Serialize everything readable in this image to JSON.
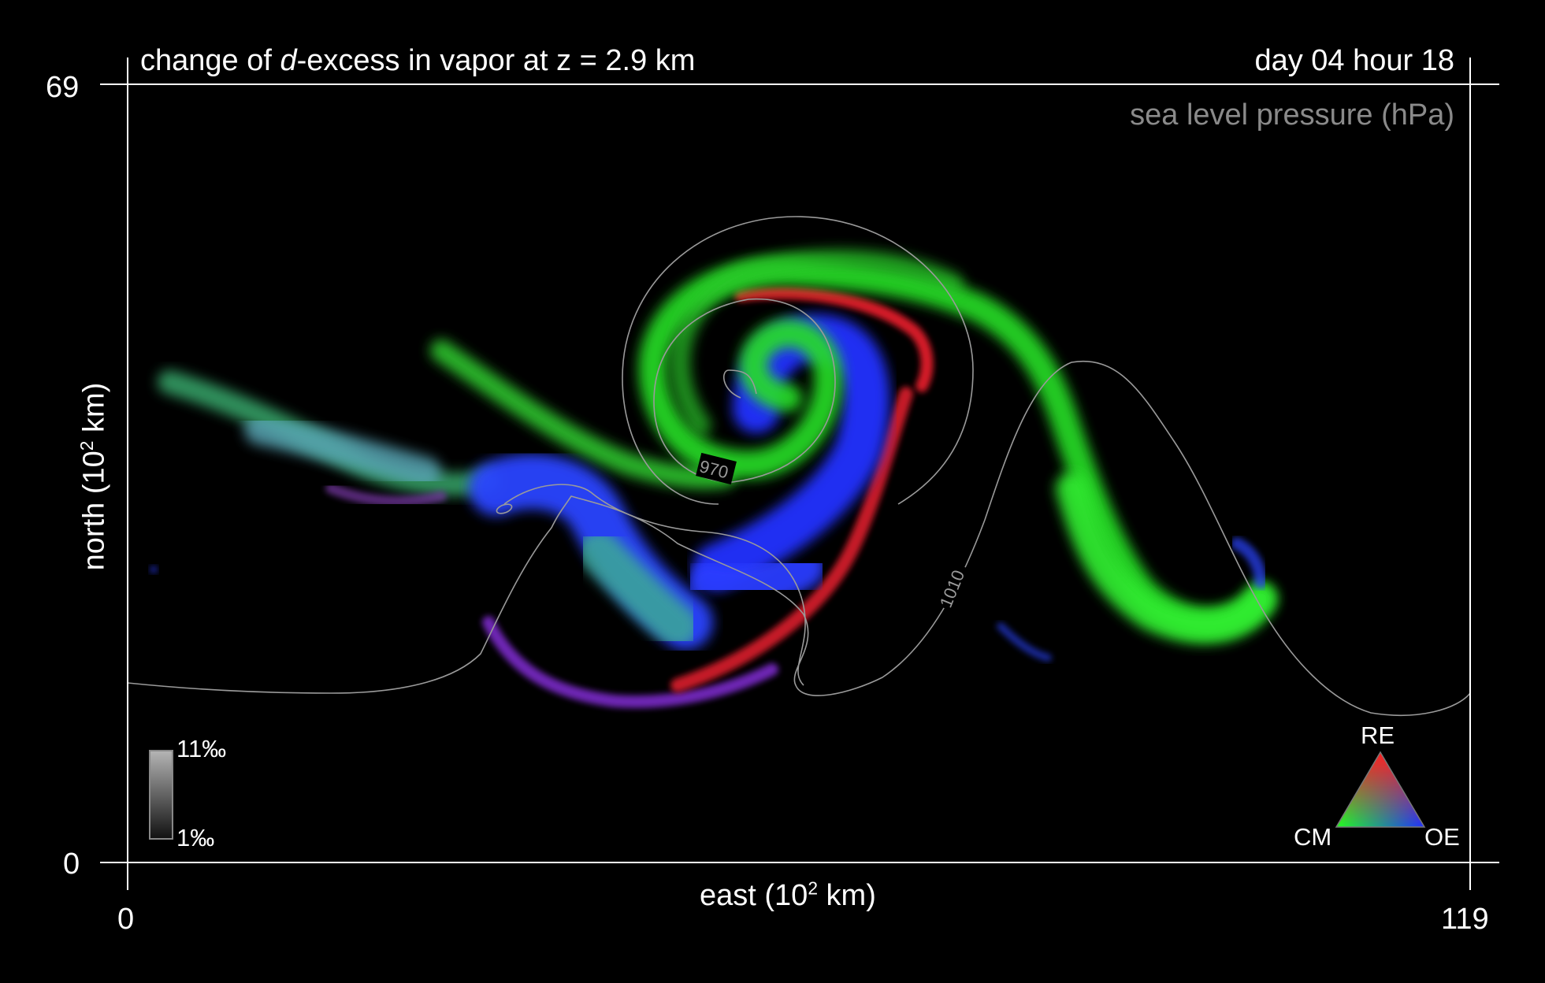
{
  "chart_data": {
    "type": "heatmap",
    "title_prefix": "change of ",
    "title_italic": "d",
    "title_suffix": "-excess in vapor at z = 2.9 km",
    "timestamp": "day 04 hour 18",
    "overlay_label": "sea level pressure (hPa)",
    "xlabel_prefix": "east (10",
    "xlabel_sup": "2",
    "xlabel_suffix": " km)",
    "ylabel_prefix": "north (10",
    "ylabel_sup": "2",
    "ylabel_suffix": " km)",
    "x_ticks": [
      "0",
      "119"
    ],
    "y_ticks": [
      "0",
      "69"
    ],
    "xlim": [
      0,
      119
    ],
    "ylim": [
      0,
      69
    ],
    "contours": [
      {
        "level": 970,
        "label": "970"
      },
      {
        "level": 1010,
        "label": "1010"
      }
    ],
    "intensity_scale": {
      "max_label": "11‰",
      "min_label": "1‰",
      "max": 11,
      "min": 1,
      "units": "‰"
    },
    "color_triangle": {
      "top": "RE",
      "left": "CM",
      "right": "OE"
    },
    "colors": {
      "RE": "#ff2020",
      "CM": "#20ff20",
      "OE": "#2030ff",
      "contour": "#9a9a9a",
      "axis": "#ffffff"
    }
  }
}
